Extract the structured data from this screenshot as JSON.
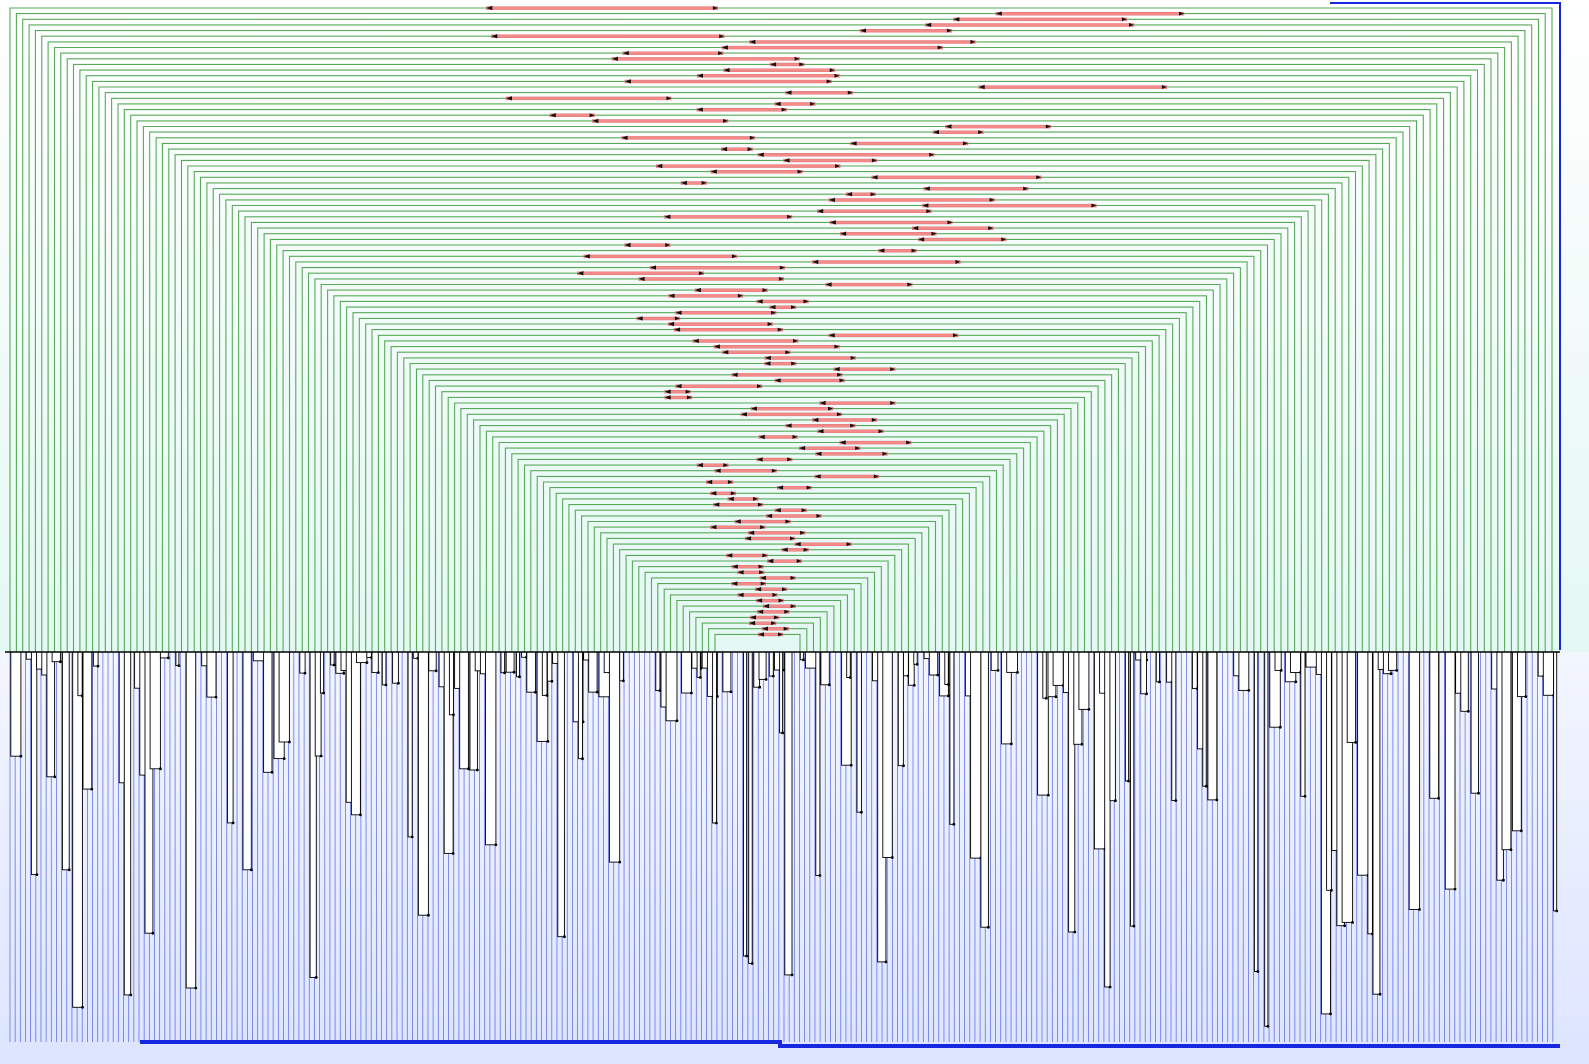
{
  "diagram": {
    "type": "mirrored-nested-bracket-visualization",
    "bracket_count": 112,
    "bar_count": 300,
    "colors": {
      "bracket": "#5aa95a",
      "connector_fill": "#f48a8a",
      "connector_stroke": "#d96767",
      "arrow": "#111111",
      "axis": "#000000",
      "bar_fill": "#ffffff",
      "bar_stroke": "#000000",
      "lane": "#4f5fe0",
      "baseline_bar": "#1528e0",
      "top_background": "#f2fffc",
      "bottom_background": "#eef2ff"
    }
  }
}
